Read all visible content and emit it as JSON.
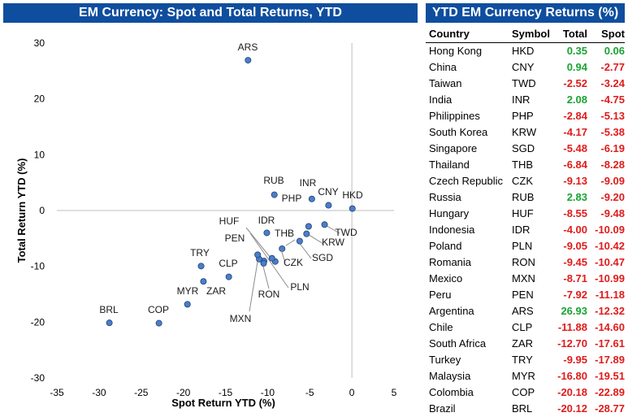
{
  "left_title": "EM Currency: Spot and Total Returns, YTD",
  "right_title": "YTD EM Currency Returns (%)",
  "colors": {
    "header_bg": "#0f4e9e",
    "positive": "#1aa333",
    "negative": "#e01b1b",
    "marker": "#4a7ec9"
  },
  "table": {
    "headers": {
      "country": "Country",
      "symbol": "Symbol",
      "total": "Total",
      "spot": "Spot"
    },
    "rows": [
      {
        "country": "Hong Kong",
        "symbol": "HKD",
        "total": "0.35",
        "spot": "0.06"
      },
      {
        "country": "China",
        "symbol": "CNY",
        "total": "0.94",
        "spot": "-2.77"
      },
      {
        "country": "Taiwan",
        "symbol": "TWD",
        "total": "-2.52",
        "spot": "-3.24"
      },
      {
        "country": "India",
        "symbol": "INR",
        "total": "2.08",
        "spot": "-4.75"
      },
      {
        "country": "Philippines",
        "symbol": "PHP",
        "total": "-2.84",
        "spot": "-5.13"
      },
      {
        "country": "South Korea",
        "symbol": "KRW",
        "total": "-4.17",
        "spot": "-5.38"
      },
      {
        "country": "Singapore",
        "symbol": "SGD",
        "total": "-5.48",
        "spot": "-6.19"
      },
      {
        "country": "Thailand",
        "symbol": "THB",
        "total": "-6.84",
        "spot": "-8.28"
      },
      {
        "country": "Czech Republic",
        "symbol": "CZK",
        "total": "-9.13",
        "spot": "-9.09"
      },
      {
        "country": "Russia",
        "symbol": "RUB",
        "total": "2.83",
        "spot": "-9.20"
      },
      {
        "country": "Hungary",
        "symbol": "HUF",
        "total": "-8.55",
        "spot": "-9.48"
      },
      {
        "country": "Indonesia",
        "symbol": "IDR",
        "total": "-4.00",
        "spot": "-10.09"
      },
      {
        "country": "Poland",
        "symbol": "PLN",
        "total": "-9.05",
        "spot": "-10.42"
      },
      {
        "country": "Romania",
        "symbol": "RON",
        "total": "-9.45",
        "spot": "-10.47"
      },
      {
        "country": "Mexico",
        "symbol": "MXN",
        "total": "-8.71",
        "spot": "-10.99"
      },
      {
        "country": "Peru",
        "symbol": "PEN",
        "total": "-7.92",
        "spot": "-11.18"
      },
      {
        "country": "Argentina",
        "symbol": "ARS",
        "total": "26.93",
        "spot": "-12.32"
      },
      {
        "country": "Chile",
        "symbol": "CLP",
        "total": "-11.88",
        "spot": "-14.60"
      },
      {
        "country": "South Africa",
        "symbol": "ZAR",
        "total": "-12.70",
        "spot": "-17.61"
      },
      {
        "country": "Turkey",
        "symbol": "TRY",
        "total": "-9.95",
        "spot": "-17.89"
      },
      {
        "country": "Malaysia",
        "symbol": "MYR",
        "total": "-16.80",
        "spot": "-19.51"
      },
      {
        "country": "Colombia",
        "symbol": "COP",
        "total": "-20.18",
        "spot": "-22.89"
      },
      {
        "country": "Brazil",
        "symbol": "BRL",
        "total": "-20.12",
        "spot": "-28.77"
      }
    ]
  },
  "chart_data": {
    "type": "scatter",
    "title": "EM Currency: Spot and Total Returns, YTD",
    "xlabel": "Spot Return YTD (%)",
    "ylabel": "Total Return YTD (%)",
    "xlim": [
      -35,
      5
    ],
    "ylim": [
      -30,
      30
    ],
    "xticks": [
      -35,
      -30,
      -25,
      -20,
      -15,
      -10,
      -5,
      0,
      5
    ],
    "yticks": [
      -30,
      -20,
      -10,
      0,
      10,
      20,
      30
    ],
    "grid": false,
    "points": [
      {
        "label": "HKD",
        "x": 0.06,
        "y": 0.35
      },
      {
        "label": "CNY",
        "x": -2.77,
        "y": 0.94
      },
      {
        "label": "TWD",
        "x": -3.24,
        "y": -2.52
      },
      {
        "label": "INR",
        "x": -4.75,
        "y": 2.08
      },
      {
        "label": "PHP",
        "x": -5.13,
        "y": -2.84
      },
      {
        "label": "KRW",
        "x": -5.38,
        "y": -4.17
      },
      {
        "label": "SGD",
        "x": -6.19,
        "y": -5.48
      },
      {
        "label": "THB",
        "x": -8.28,
        "y": -6.84
      },
      {
        "label": "CZK",
        "x": -9.09,
        "y": -9.13
      },
      {
        "label": "RUB",
        "x": -9.2,
        "y": 2.83
      },
      {
        "label": "HUF",
        "x": -9.48,
        "y": -8.55
      },
      {
        "label": "IDR",
        "x": -10.09,
        "y": -4.0
      },
      {
        "label": "PLN",
        "x": -10.42,
        "y": -9.05
      },
      {
        "label": "RON",
        "x": -10.47,
        "y": -9.45
      },
      {
        "label": "MXN",
        "x": -10.99,
        "y": -8.71
      },
      {
        "label": "PEN",
        "x": -11.18,
        "y": -7.92
      },
      {
        "label": "ARS",
        "x": -12.32,
        "y": 26.93
      },
      {
        "label": "CLP",
        "x": -14.6,
        "y": -11.88
      },
      {
        "label": "ZAR",
        "x": -17.61,
        "y": -12.7
      },
      {
        "label": "TRY",
        "x": -17.89,
        "y": -9.95
      },
      {
        "label": "MYR",
        "x": -19.51,
        "y": -16.8
      },
      {
        "label": "COP",
        "x": -22.89,
        "y": -20.18
      },
      {
        "label": "BRL",
        "x": -28.77,
        "y": -20.12
      }
    ]
  }
}
